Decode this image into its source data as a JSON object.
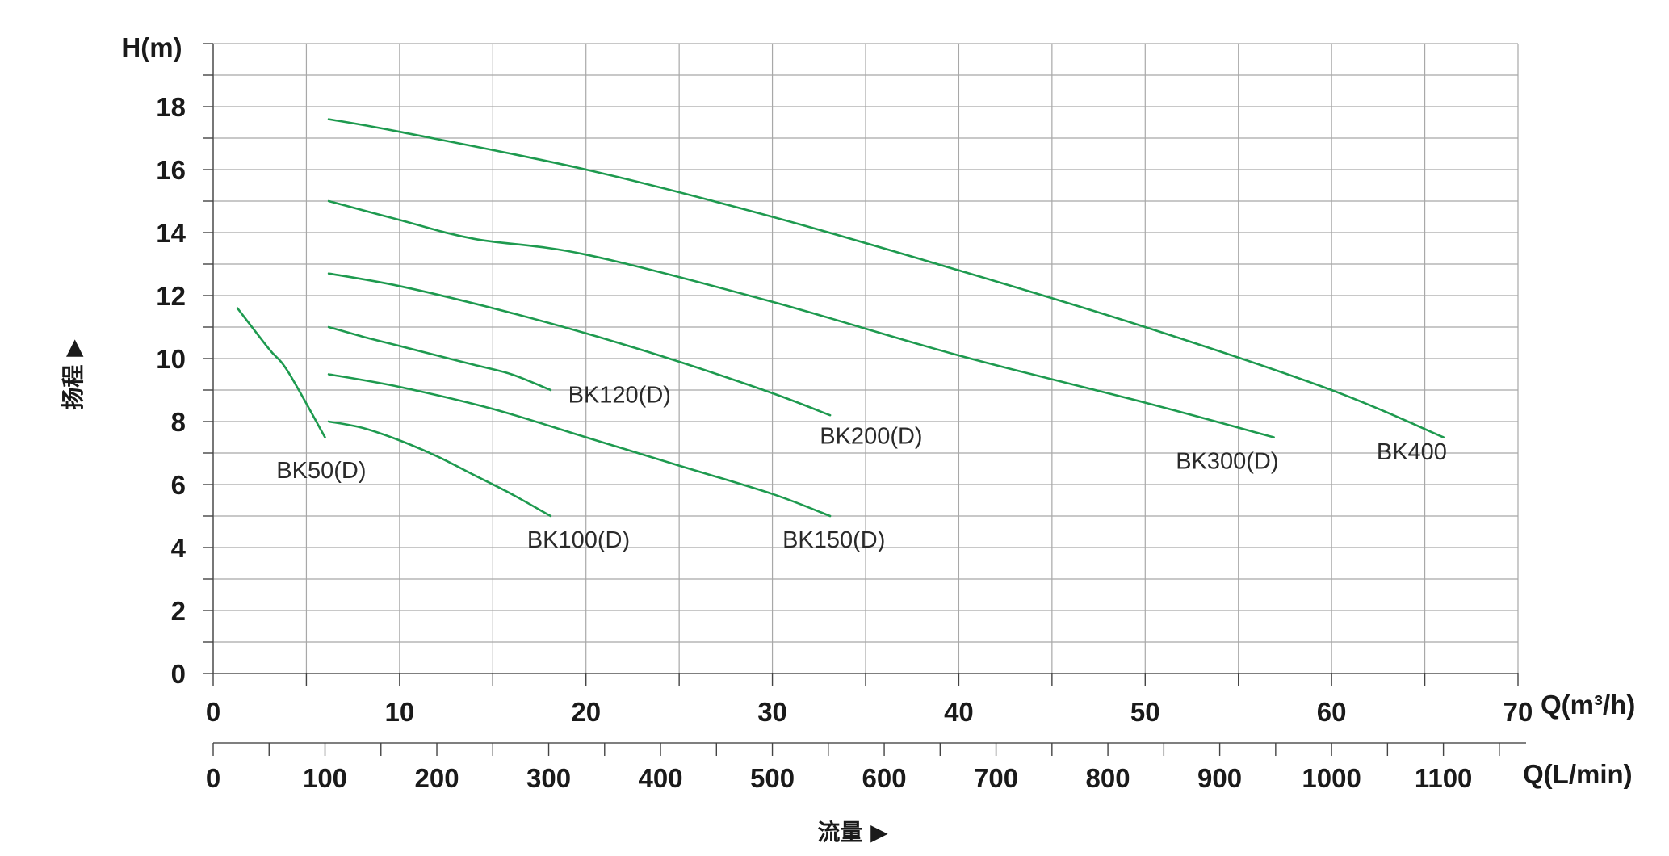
{
  "chart_data": {
    "type": "line",
    "y_axis": {
      "unit_label": "H(m)",
      "title": "扬程 ▶",
      "ticks": [
        0,
        2,
        4,
        6,
        8,
        10,
        12,
        14,
        16,
        18
      ],
      "ylim": [
        0,
        20
      ]
    },
    "x_axis_primary": {
      "unit_label": "Q(m³/h)",
      "ticks": [
        0,
        10,
        20,
        30,
        40,
        50,
        60,
        70
      ],
      "xlim": [
        0,
        70
      ]
    },
    "x_axis_secondary": {
      "unit_label": "Q(L/min)",
      "ticks": [
        0,
        100,
        200,
        300,
        400,
        500,
        600,
        700,
        800,
        900,
        1000,
        1100
      ],
      "xlim": [
        0,
        1166.7
      ]
    },
    "x_title": "流量 ▶",
    "grid": true,
    "series": [
      {
        "name": "BK50(D)",
        "points": [
          [
            1.3,
            11.6
          ],
          [
            3,
            10.3
          ],
          [
            4,
            9.6
          ],
          [
            6.0,
            7.5
          ]
        ]
      },
      {
        "name": "BK100(D)",
        "points": [
          [
            6.2,
            8.0
          ],
          [
            8,
            7.8
          ],
          [
            10,
            7.4
          ],
          [
            12,
            6.9
          ],
          [
            14,
            6.3
          ],
          [
            16,
            5.7
          ],
          [
            18.1,
            5.0
          ]
        ]
      },
      {
        "name": "BK120(D)",
        "points": [
          [
            6.2,
            11.0
          ],
          [
            8,
            10.7
          ],
          [
            10,
            10.4
          ],
          [
            12,
            10.1
          ],
          [
            14,
            9.8
          ],
          [
            16,
            9.5
          ],
          [
            18.1,
            9.0
          ]
        ]
      },
      {
        "name": "BK150(D)",
        "points": [
          [
            6.2,
            9.5
          ],
          [
            10,
            9.1
          ],
          [
            15,
            8.4
          ],
          [
            20,
            7.5
          ],
          [
            25,
            6.6
          ],
          [
            30,
            5.7
          ],
          [
            33.1,
            5.0
          ]
        ]
      },
      {
        "name": "BK200(D)",
        "points": [
          [
            6.2,
            12.7
          ],
          [
            10,
            12.3
          ],
          [
            15,
            11.6
          ],
          [
            20,
            10.8
          ],
          [
            25,
            9.9
          ],
          [
            30,
            8.9
          ],
          [
            33.1,
            8.2
          ]
        ]
      },
      {
        "name": "BK300(D)",
        "points": [
          [
            6.2,
            15.0
          ],
          [
            10,
            14.4
          ],
          [
            14,
            13.8
          ],
          [
            20,
            13.3
          ],
          [
            30,
            11.8
          ],
          [
            40,
            10.1
          ],
          [
            50,
            8.6
          ],
          [
            56.9,
            7.5
          ]
        ]
      },
      {
        "name": "BK400",
        "points": [
          [
            6.2,
            17.6
          ],
          [
            10,
            17.2
          ],
          [
            20,
            16.0
          ],
          [
            30,
            14.5
          ],
          [
            40,
            12.8
          ],
          [
            50,
            11.0
          ],
          [
            60,
            9.0
          ],
          [
            66.0,
            7.5
          ]
        ]
      }
    ],
    "annotations": [
      {
        "text": "BK50(D)",
        "x": 5.8,
        "y": 6.2
      },
      {
        "text": "BK100(D)",
        "x": 19.6,
        "y": 4.0
      },
      {
        "text": "BK120(D)",
        "x": 21.8,
        "y": 8.6
      },
      {
        "text": "BK150(D)",
        "x": 33.3,
        "y": 4.0
      },
      {
        "text": "BK200(D)",
        "x": 35.3,
        "y": 7.3
      },
      {
        "text": "BK300(D)",
        "x": 54.4,
        "y": 6.5
      },
      {
        "text": "BK400",
        "x": 64.3,
        "y": 6.8
      }
    ],
    "colors": {
      "curve": "#1e9a4f",
      "grid": "#a8a8a8",
      "axis": "#555555",
      "text": "#1a1a1a"
    }
  }
}
